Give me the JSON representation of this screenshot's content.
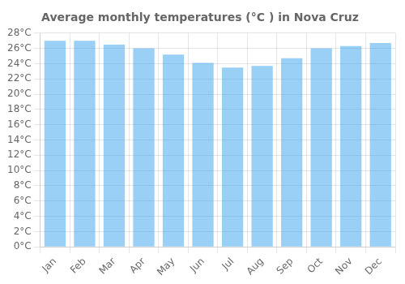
{
  "chart_data": {
    "type": "bar",
    "title": "Average monthly temperatures (°C ) in Nova Cruz",
    "categories": [
      "Jan",
      "Feb",
      "Mar",
      "Apr",
      "May",
      "Jun",
      "Jul",
      "Aug",
      "Sep",
      "Oct",
      "Nov",
      "Dec"
    ],
    "values": [
      27.0,
      27.0,
      26.5,
      26.0,
      25.2,
      24.1,
      23.5,
      23.7,
      24.7,
      26.0,
      26.3,
      26.7
    ],
    "ylim": [
      0,
      28
    ],
    "yticks": [
      {
        "value": 0,
        "label": "0°C"
      },
      {
        "value": 2,
        "label": "2°C"
      },
      {
        "value": 4,
        "label": "4°C"
      },
      {
        "value": 6,
        "label": "6°C"
      },
      {
        "value": 8,
        "label": "8°C"
      },
      {
        "value": 10,
        "label": "10°C"
      },
      {
        "value": 12,
        "label": "12°C"
      },
      {
        "value": 14,
        "label": "14°C"
      },
      {
        "value": 16,
        "label": "16°C"
      },
      {
        "value": 18,
        "label": "18°C"
      },
      {
        "value": 20,
        "label": "20°C"
      },
      {
        "value": 22,
        "label": "22°C"
      },
      {
        "value": 24,
        "label": "24°C"
      },
      {
        "value": 26,
        "label": "26°C"
      },
      {
        "value": 28,
        "label": "28°C"
      }
    ],
    "grid": true
  }
}
